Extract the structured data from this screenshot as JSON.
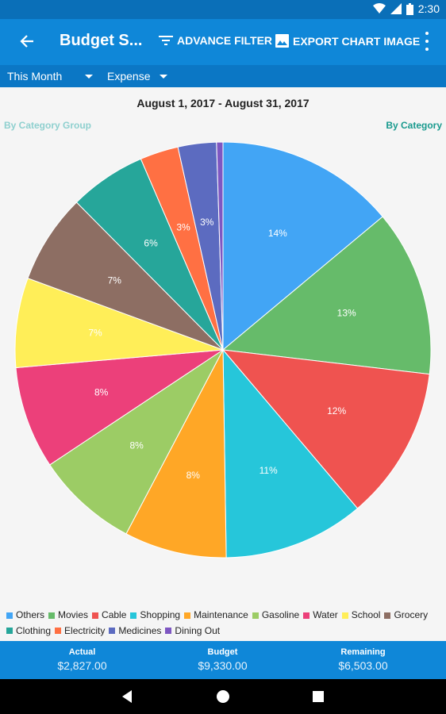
{
  "status": {
    "time": "2:30"
  },
  "appbar": {
    "title": "Budget S...",
    "advance_filter": "ADVANCE FILTER",
    "export_chart": "EXPORT CHART IMAGE",
    "back_icon": "arrow-back-icon",
    "more_icon": "more-vert-icon"
  },
  "filters": {
    "period": "This Month",
    "type": "Expense"
  },
  "chart_header": {
    "date_range": "August 1, 2017 - August 31, 2017",
    "by_group": "By Category Group",
    "by_category": "By Category"
  },
  "chart_data": {
    "type": "pie",
    "title": "",
    "categories": [
      "Others",
      "Movies",
      "Cable",
      "Shopping",
      "Maintenance",
      "Gasoline",
      "Water",
      "School",
      "Grocery",
      "Clothing",
      "Electricity",
      "Medicines",
      "Dining Out"
    ],
    "values": [
      14,
      13,
      12,
      11,
      8,
      8,
      8,
      7,
      7,
      6,
      3,
      3,
      0.5
    ],
    "labels": [
      "14%",
      "13%",
      "12%",
      "11%",
      "8%",
      "8%",
      "8%",
      "7%",
      "7%",
      "6%",
      "3%",
      "3%",
      ""
    ],
    "colors": [
      "#42a5f5",
      "#66bb6a",
      "#ef5350",
      "#26c6da",
      "#ffa726",
      "#9ccc65",
      "#ec407a",
      "#ffee58",
      "#8d6e63",
      "#26a69a",
      "#ff7043",
      "#5c6bc0",
      "#7e57c2"
    ],
    "legend": "bottom"
  },
  "summary": {
    "actual_label": "Actual",
    "actual_value": "$2,827.00",
    "budget_label": "Budget",
    "budget_value": "$9,330.00",
    "remaining_label": "Remaining",
    "remaining_value": "$6,503.00"
  }
}
